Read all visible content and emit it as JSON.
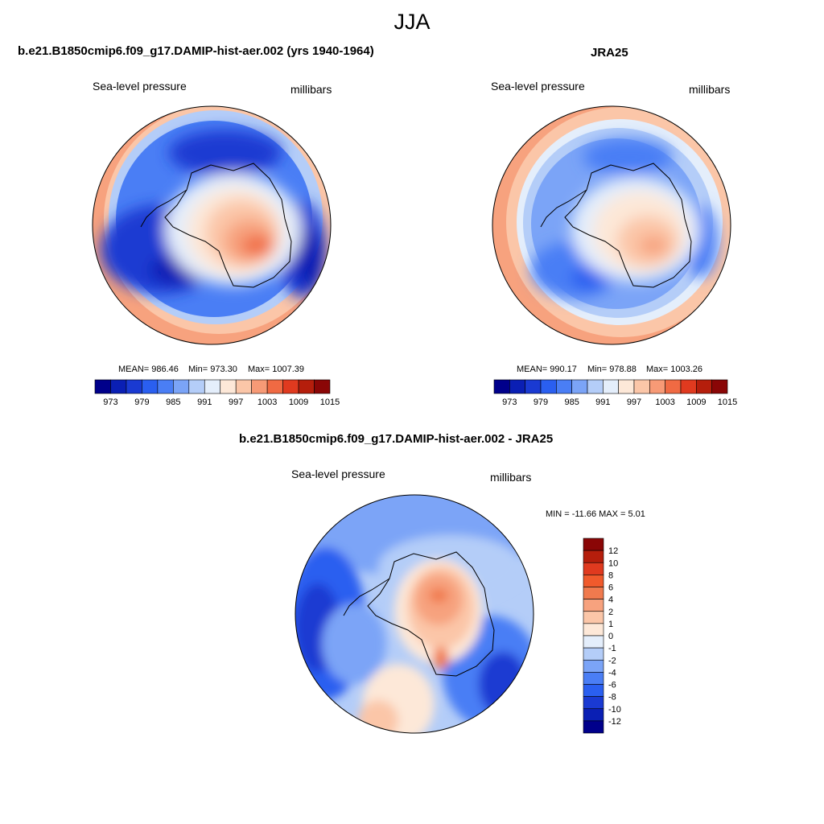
{
  "figure_title": "JJA",
  "panels": {
    "model": {
      "title": "b.e21.B1850cmip6.f09_g17.DAMIP-hist-aer.002 (yrs 1940-1964)",
      "left_label": "Sea-level pressure",
      "right_label": "millibars",
      "mean_text": "MEAN= 986.46",
      "min_text": "Min= 973.30",
      "max_text": "Max= 1007.39"
    },
    "obs": {
      "title": "JRA25",
      "left_label": "Sea-level pressure",
      "right_label": "millibars",
      "mean_text": "MEAN= 990.17",
      "min_text": "Min= 978.88",
      "max_text": "Max= 1003.26"
    },
    "diff": {
      "title": "b.e21.B1850cmip6.f09_g17.DAMIP-hist-aer.002 - JRA25",
      "left_label": "Sea-level pressure",
      "right_label": "millibars",
      "minmax_text": "MIN = -11.66 MAX =   5.01"
    }
  },
  "chart_data": [
    {
      "type": "heatmap",
      "projection": "south-polar stereographic",
      "title": "b.e21.B1850cmip6.f09_g17.DAMIP-hist-aer.002 (yrs 1940-1964)",
      "variable": "Sea-level pressure",
      "units": "millibars",
      "mean": 986.46,
      "min": 973.3,
      "max": 1007.39,
      "levels": [
        973,
        976,
        979,
        982,
        985,
        988,
        991,
        994,
        997,
        1000,
        1003,
        1006,
        1009,
        1012,
        1015
      ],
      "colorbar_tick_labels": [
        "973",
        "979",
        "985",
        "991",
        "997",
        "1003",
        "1009",
        "1015"
      ],
      "colors": [
        "#00008b",
        "#0a1fb4",
        "#1a3ad2",
        "#2a5ff0",
        "#4a7ef5",
        "#7ba4f7",
        "#b4cdf8",
        "#e4eefb",
        "#fde8d8",
        "#fbc6a8",
        "#f79a76",
        "#f06a43",
        "#e03a1f",
        "#b51e0c",
        "#8a0606"
      ]
    },
    {
      "type": "heatmap",
      "projection": "south-polar stereographic",
      "title": "JRA25",
      "variable": "Sea-level pressure",
      "units": "millibars",
      "mean": 990.17,
      "min": 978.88,
      "max": 1003.26,
      "levels": [
        973,
        976,
        979,
        982,
        985,
        988,
        991,
        994,
        997,
        1000,
        1003,
        1006,
        1009,
        1012,
        1015
      ],
      "colorbar_tick_labels": [
        "973",
        "979",
        "985",
        "991",
        "997",
        "1003",
        "1009",
        "1015"
      ],
      "colors": [
        "#00008b",
        "#0a1fb4",
        "#1a3ad2",
        "#2a5ff0",
        "#4a7ef5",
        "#7ba4f7",
        "#b4cdf8",
        "#e4eefb",
        "#fde8d8",
        "#fbc6a8",
        "#f79a76",
        "#f06a43",
        "#e03a1f",
        "#b51e0c",
        "#8a0606"
      ]
    },
    {
      "type": "heatmap",
      "projection": "south-polar stereographic",
      "title": "b.e21.B1850cmip6.f09_g17.DAMIP-hist-aer.002 - JRA25",
      "variable": "Sea-level pressure",
      "units": "millibars",
      "min": -11.66,
      "max": 5.01,
      "levels": [
        -12,
        -10,
        -8,
        -6,
        -4,
        -2,
        -1,
        0,
        1,
        2,
        4,
        6,
        8,
        10,
        12
      ],
      "colorbar_tick_labels": [
        "12",
        "10",
        "8",
        "6",
        "4",
        "2",
        "1",
        "0",
        "-1",
        "-2",
        "-4",
        "-6",
        "-8",
        "-10",
        "-12"
      ],
      "colors": [
        "#8a0606",
        "#b51e0c",
        "#e03a1f",
        "#f05a2c",
        "#f07a4e",
        "#f7a27e",
        "#fbc6a8",
        "#fde8d8",
        "#e4eefb",
        "#b4cdf8",
        "#7ba4f7",
        "#4a7ef5",
        "#2a5ff0",
        "#1a3ad2",
        "#0a1fb4",
        "#00008b"
      ]
    }
  ]
}
